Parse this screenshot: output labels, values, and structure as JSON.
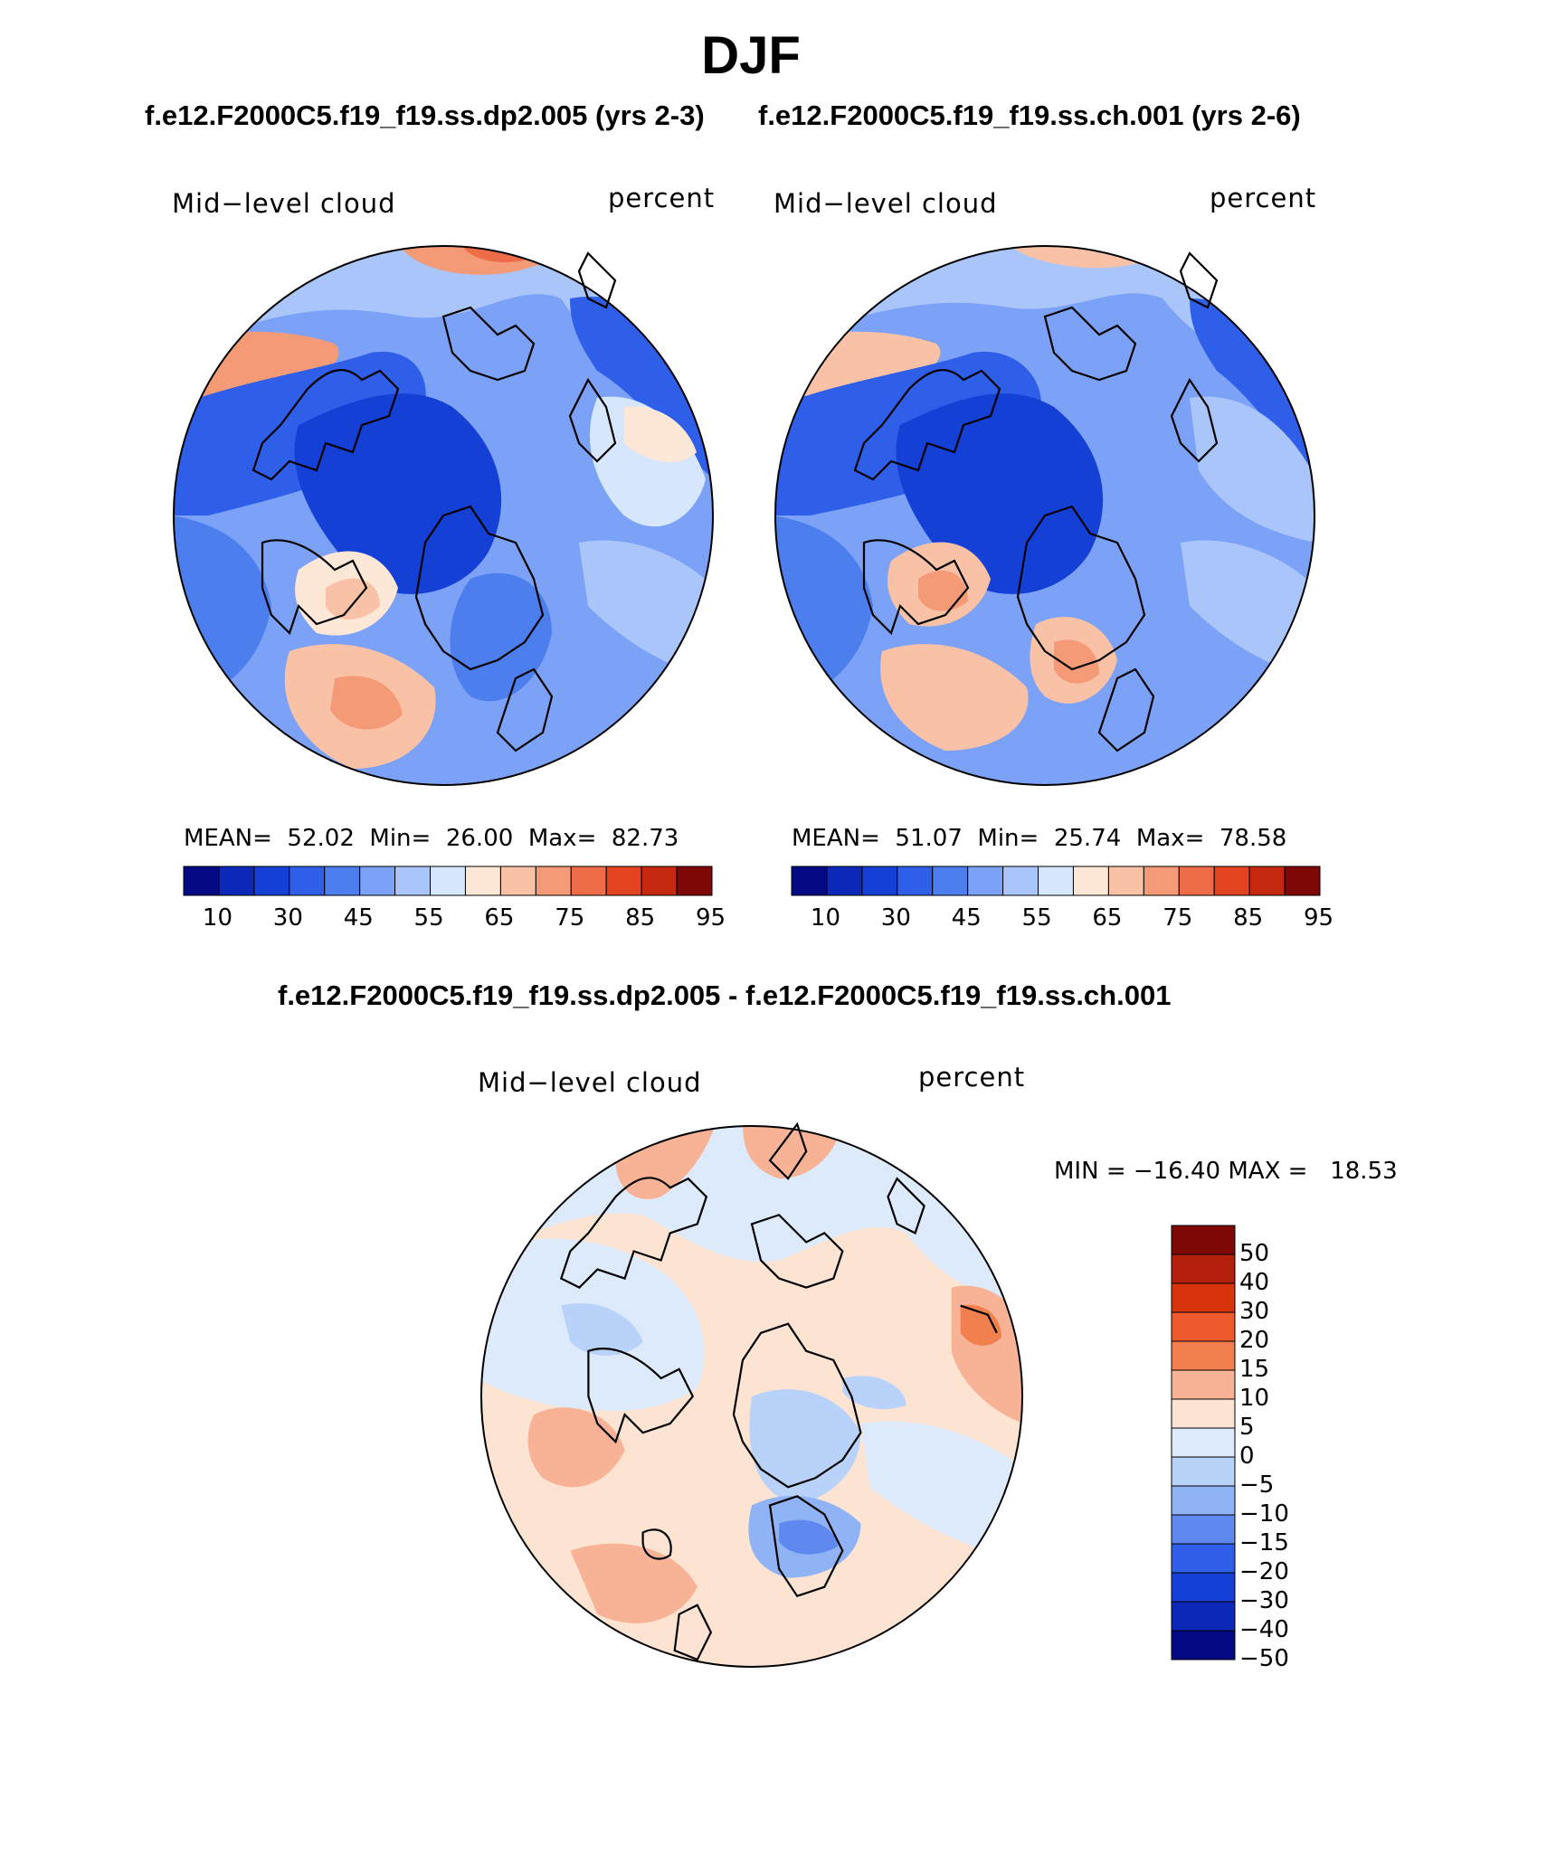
{
  "title": "DJF",
  "panels": [
    {
      "case_label": "f.e12.F2000C5.f19_f19.ss.dp2.005 (yrs 2-3)",
      "variable": "Mid−level cloud",
      "units": "percent",
      "stats": {
        "mean_label": "MEAN=",
        "mean": "52.02",
        "min_label": "Min=",
        "min": "26.00",
        "max_label": "Max=",
        "max": "82.73"
      }
    },
    {
      "case_label": "f.e12.F2000C5.f19_f19.ss.ch.001 (yrs 2-6)",
      "variable": "Mid−level cloud",
      "units": "percent",
      "stats": {
        "mean_label": "MEAN=",
        "mean": "51.07",
        "min_label": "Min=",
        "min": "25.74",
        "max_label": "Max=",
        "max": "78.58"
      }
    }
  ],
  "diff_panel": {
    "case_label": "f.e12.F2000C5.f19_f19.ss.dp2.005 - f.e12.F2000C5.f19_f19.ss.ch.001",
    "variable": "Mid−level cloud",
    "units": "percent",
    "min_max": "MIN = −16.40 MAX =   18.53"
  },
  "colorbar_main": {
    "tick_labels": [
      "10",
      "30",
      "45",
      "55",
      "65",
      "75",
      "85",
      "95"
    ],
    "colors": [
      "#030a84",
      "#0b28b8",
      "#1540d6",
      "#2f5fe8",
      "#4c7eee",
      "#7ba2f6",
      "#a9c5fa",
      "#d6e6fc",
      "#fde8d8",
      "#f9c2a6",
      "#f49a76",
      "#ee6c48",
      "#e4431f",
      "#c52a10",
      "#7e0806"
    ]
  },
  "colorbar_diff": {
    "tick_labels": [
      "50",
      "40",
      "30",
      "20",
      "15",
      "10",
      "5",
      "0",
      "−5",
      "−10",
      "−15",
      "−20",
      "−30",
      "−40",
      "−50"
    ],
    "colors": [
      "#7e0806",
      "#b3200c",
      "#d8350f",
      "#ee5a2e",
      "#f2804f",
      "#f8b397",
      "#fde4d2",
      "#ddeafb",
      "#b9d2f9",
      "#8fb3f4",
      "#5f89ee",
      "#2f5fe8",
      "#1540d6",
      "#0b28b8",
      "#030a84"
    ]
  }
}
